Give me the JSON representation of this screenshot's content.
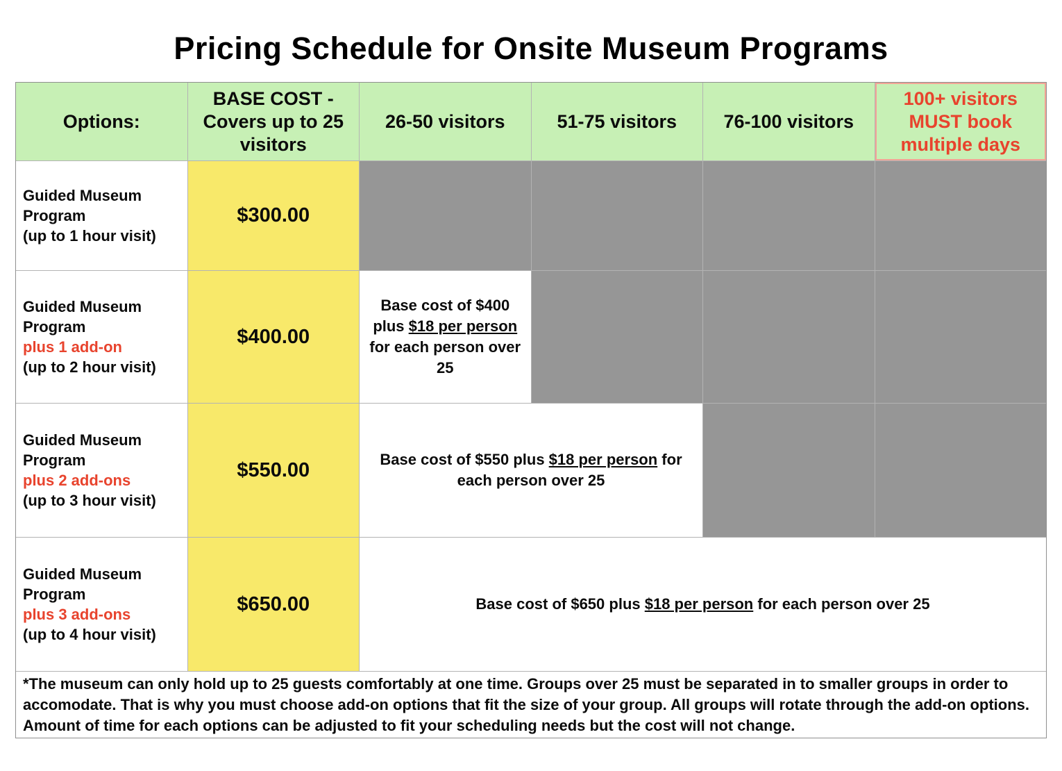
{
  "title": "Pricing Schedule for Onsite Museum Programs",
  "colors": {
    "header_green": "#c7f0b5",
    "base_cost_yellow": "#f8e96a",
    "unavailable_gray": "#969696",
    "accent_red": "#e8432d",
    "salmon_border": "#f3a396"
  },
  "table": {
    "headers": {
      "options": "Options:",
      "base_cost_lines": [
        "BASE COST -",
        "Covers up to 25",
        "visitors"
      ],
      "visitors_26_50": "26-50 visitors",
      "visitors_51_75": "51-75 visitors",
      "visitors_76_100": "76-100 visitors",
      "visitors_100_plus_lines": [
        "100+ visitors",
        "MUST book",
        "multiple days"
      ]
    },
    "rows": [
      {
        "program": "Guided Museum Program",
        "addon": "",
        "duration": "(up to 1 hour visit)",
        "base_cost": "$300.00",
        "desc_prefix": "",
        "desc_underline": "",
        "desc_suffix": ""
      },
      {
        "program": "Guided Museum Program",
        "addon": "plus 1 add-on",
        "duration": "(up to 2 hour visit)",
        "base_cost": "$400.00",
        "desc_prefix": "Base cost of $400 plus ",
        "desc_underline": "$18 per person",
        "desc_suffix": " for each person over 25"
      },
      {
        "program": "Guided Museum Program",
        "addon": "plus 2 add-ons",
        "duration": "(up to 3 hour visit)",
        "base_cost": "$550.00",
        "desc_prefix": "Base cost of $550 plus ",
        "desc_underline": "$18 per person",
        "desc_suffix": " for each person over 25"
      },
      {
        "program": "Guided Museum Program",
        "addon": "plus 3 add-ons",
        "duration": "(up to 4 hour visit)",
        "base_cost": "$650.00",
        "desc_prefix": "Base cost of $650 plus ",
        "desc_underline": "$18 per person",
        "desc_suffix": " for each person over 25"
      }
    ],
    "footnote": "*The museum can only hold up to 25 guests comfortably at one time. Groups over 25 must be separated in to smaller groups in order to accomodate. That is why you must choose add-on options that fit the size of your group. All groups will rotate through the add-on options. Amount of time for each options can be adjusted to fit your scheduling needs but the cost will not change."
  }
}
